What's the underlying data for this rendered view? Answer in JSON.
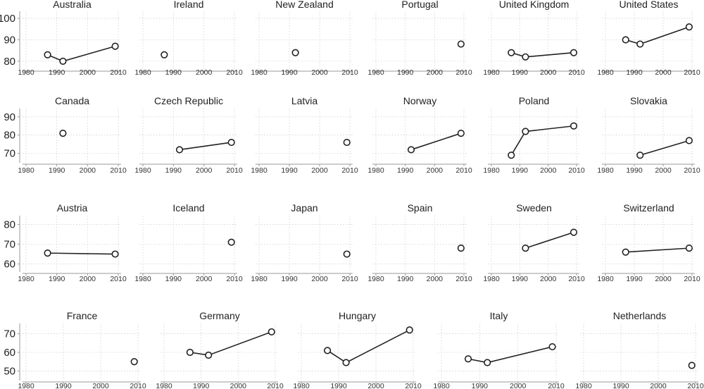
{
  "chart_data": {
    "type": "line",
    "xlim": [
      1980,
      2010
    ],
    "xticks": [
      1980,
      1990,
      2000,
      2010
    ],
    "grid": true,
    "rows": [
      {
        "yticks": [
          80,
          90,
          100
        ],
        "ylim": [
          77,
          102
        ],
        "panels": [
          {
            "title": "Australia",
            "points": [
              {
                "x": 1987,
                "y": 83
              },
              {
                "x": 1992,
                "y": 80
              },
              {
                "x": 2009,
                "y": 87
              }
            ]
          },
          {
            "title": "Ireland",
            "points": [
              {
                "x": 1987,
                "y": 83
              }
            ]
          },
          {
            "title": "New Zealand",
            "points": [
              {
                "x": 1992,
                "y": 84
              }
            ]
          },
          {
            "title": "Portugal",
            "points": [
              {
                "x": 2009,
                "y": 88
              }
            ]
          },
          {
            "title": "United Kingdom",
            "points": [
              {
                "x": 1987,
                "y": 84
              },
              {
                "x": 1992,
                "y": 82
              },
              {
                "x": 2009,
                "y": 84
              }
            ]
          },
          {
            "title": "United States",
            "points": [
              {
                "x": 1987,
                "y": 90
              },
              {
                "x": 1992,
                "y": 88
              },
              {
                "x": 2009,
                "y": 96
              }
            ]
          }
        ]
      },
      {
        "yticks": [
          70,
          80,
          90
        ],
        "ylim": [
          66,
          93
        ],
        "panels": [
          {
            "title": "Canada",
            "points": [
              {
                "x": 1992,
                "y": 81
              }
            ]
          },
          {
            "title": "Czech Republic",
            "points": [
              {
                "x": 1992,
                "y": 72
              },
              {
                "x": 2009,
                "y": 76
              }
            ]
          },
          {
            "title": "Latvia",
            "points": [
              {
                "x": 2009,
                "y": 76
              }
            ]
          },
          {
            "title": "Norway",
            "points": [
              {
                "x": 1992,
                "y": 72
              },
              {
                "x": 2009,
                "y": 81
              }
            ]
          },
          {
            "title": "Poland",
            "points": [
              {
                "x": 1987,
                "y": 69
              },
              {
                "x": 1992,
                "y": 82
              },
              {
                "x": 2009,
                "y": 85
              }
            ]
          },
          {
            "title": "Slovakia",
            "points": [
              {
                "x": 1992,
                "y": 69
              },
              {
                "x": 2009,
                "y": 77
              }
            ]
          }
        ]
      },
      {
        "yticks": [
          60,
          70,
          80
        ],
        "ylim": [
          57,
          83
        ],
        "panels": [
          {
            "title": "Austria",
            "points": [
              {
                "x": 1987,
                "y": 65.5
              },
              {
                "x": 2009,
                "y": 65
              }
            ]
          },
          {
            "title": "Iceland",
            "points": [
              {
                "x": 2009,
                "y": 71
              }
            ]
          },
          {
            "title": "Japan",
            "points": [
              {
                "x": 2009,
                "y": 65
              }
            ]
          },
          {
            "title": "Spain",
            "points": [
              {
                "x": 2009,
                "y": 68
              }
            ]
          },
          {
            "title": "Sweden",
            "points": [
              {
                "x": 1992,
                "y": 68
              },
              {
                "x": 2009,
                "y": 76
              }
            ]
          },
          {
            "title": "Switzerland",
            "points": [
              {
                "x": 1987,
                "y": 66
              },
              {
                "x": 2009,
                "y": 68
              }
            ]
          }
        ]
      },
      {
        "yticks": [
          50,
          60,
          70
        ],
        "ylim": [
          46,
          74
        ],
        "panels": [
          {
            "title": "France",
            "points": [
              {
                "x": 2009,
                "y": 55
              }
            ]
          },
          {
            "title": "Germany",
            "points": [
              {
                "x": 1987,
                "y": 60
              },
              {
                "x": 1992,
                "y": 58.5
              },
              {
                "x": 2009,
                "y": 71
              }
            ]
          },
          {
            "title": "Hungary",
            "points": [
              {
                "x": 1987,
                "y": 61
              },
              {
                "x": 1992,
                "y": 54.5
              },
              {
                "x": 2009,
                "y": 72
              }
            ]
          },
          {
            "title": "Italy",
            "points": [
              {
                "x": 1987,
                "y": 56.5
              },
              {
                "x": 1992,
                "y": 54.5
              },
              {
                "x": 2009,
                "y": 63
              }
            ]
          },
          {
            "title": "Netherlands",
            "points": [
              {
                "x": 2009,
                "y": 53
              }
            ]
          }
        ]
      }
    ]
  }
}
